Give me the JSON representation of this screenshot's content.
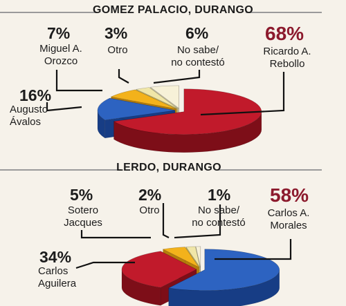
{
  "colors": {
    "red": "#c11a2b",
    "red_side": "#7d0e18",
    "blue": "#2d63c1",
    "blue_side": "#173d85",
    "orange": "#f3b21b",
    "orange_side": "#b57d0c",
    "pale": "#f0e6a8",
    "pale_side": "#c2b36c",
    "cream": "#f7f1d8",
    "cream_side": "#cbc4a6",
    "accent_text": "#8c1a2d"
  },
  "chart_data": [
    {
      "type": "pie",
      "title": "GOMEZ PALACIO, DURANGO",
      "slices": [
        {
          "label": "Ricardo A. Rebollo",
          "value": 68,
          "value_text": "68%",
          "name_text": "Ricardo A.\nRebollo",
          "color": "#c11a2b",
          "side": "#7d0e18"
        },
        {
          "label": "Augusto Ávalos",
          "value": 16,
          "value_text": "16%",
          "name_text": "Augusto\nÁvalos",
          "color": "#2d63c1",
          "side": "#173d85"
        },
        {
          "label": "Miguel A. Orozco",
          "value": 7,
          "value_text": "7%",
          "name_text": "Miguel A.\nOrozco",
          "color": "#f3b21b",
          "side": "#b57d0c"
        },
        {
          "label": "Otro",
          "value": 3,
          "value_text": "3%",
          "name_text": "Otro",
          "color": "#f0e6a8",
          "side": "#c2b36c"
        },
        {
          "label": "No sabe/ no contestó",
          "value": 6,
          "value_text": "6%",
          "name_text": "No sabe/\nno contestó",
          "color": "#f7f1d8",
          "side": "#cbc4a6"
        }
      ]
    },
    {
      "type": "pie",
      "title": "LERDO, DURANGO",
      "slices": [
        {
          "label": "Carlos A. Morales",
          "value": 58,
          "value_text": "58%",
          "name_text": "Carlos A.\nMorales",
          "color": "#2d63c1",
          "side": "#173d85"
        },
        {
          "label": "Carlos Aguilera",
          "value": 34,
          "value_text": "34%",
          "name_text": "Carlos\nAguilera",
          "color": "#c11a2b",
          "side": "#7d0e18"
        },
        {
          "label": "Sotero Jacques",
          "value": 5,
          "value_text": "5%",
          "name_text": "Sotero\nJacques",
          "color": "#f3b21b",
          "side": "#b57d0c"
        },
        {
          "label": "Otro",
          "value": 2,
          "value_text": "2%",
          "name_text": "Otro",
          "color": "#f0e6a8",
          "side": "#c2b36c"
        },
        {
          "label": "No sabe/ no contestó",
          "value": 1,
          "value_text": "1%",
          "name_text": "No sabe/\nno contestó",
          "color": "#f7f1d8",
          "side": "#cbc4a6"
        }
      ]
    }
  ]
}
